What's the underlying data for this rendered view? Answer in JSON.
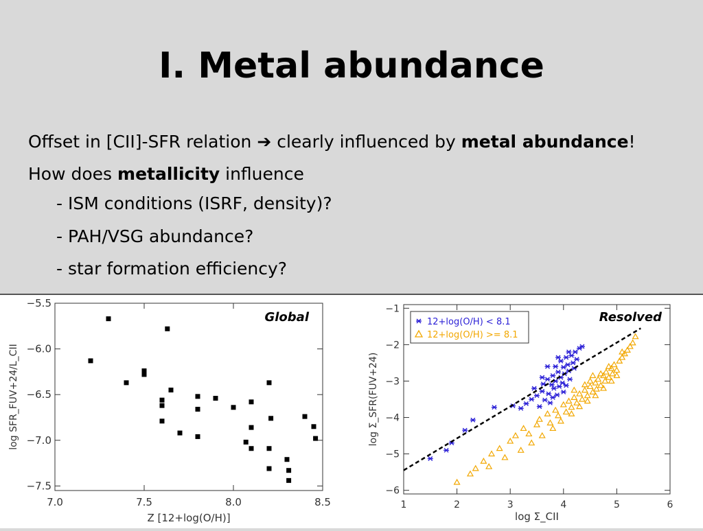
{
  "slide": {
    "title": "I. Metal abundance",
    "line1_pre": "Offset in [CII]-SFR relation ",
    "line1_arrow": "➔",
    "line1_mid": " clearly influenced by ",
    "line1_bold": "metal abundance",
    "line1_end": "!",
    "line2_pre": "How does ",
    "line2_bold": "metallicity",
    "line2_end": " influence",
    "bullets": [
      "- ISM conditions (ISRF, density)?",
      "- PAH/VSG abundance?",
      "- star formation efficiency?"
    ]
  },
  "chart_data": [
    {
      "type": "scatter",
      "title": "Global",
      "xlabel": "Z [12+log(O/H)]",
      "ylabel": "log SFR_FUV+24/L_CII",
      "xlim": [
        7.0,
        8.5
      ],
      "ylim": [
        -7.55,
        -5.5
      ],
      "xticks": [
        "7.0",
        "7.5",
        "8.0",
        "8.5"
      ],
      "yticks": [
        "−5.5",
        "−6.0",
        "−6.5",
        "−7.0",
        "−7.5"
      ],
      "points": [
        [
          7.2,
          -6.13
        ],
        [
          7.3,
          -5.67
        ],
        [
          7.4,
          -6.37
        ],
        [
          7.5,
          -6.24
        ],
        [
          7.5,
          -6.28
        ],
        [
          7.6,
          -6.56
        ],
        [
          7.6,
          -6.62
        ],
        [
          7.6,
          -6.79
        ],
        [
          7.63,
          -5.78
        ],
        [
          7.65,
          -6.45
        ],
        [
          7.7,
          -6.92
        ],
        [
          7.8,
          -6.52
        ],
        [
          7.8,
          -6.66
        ],
        [
          7.8,
          -6.96
        ],
        [
          7.9,
          -6.54
        ],
        [
          8.0,
          -6.64
        ],
        [
          8.07,
          -7.02
        ],
        [
          8.1,
          -6.58
        ],
        [
          8.1,
          -6.86
        ],
        [
          8.1,
          -7.09
        ],
        [
          8.2,
          -6.37
        ],
        [
          8.2,
          -7.09
        ],
        [
          8.2,
          -7.31
        ],
        [
          8.21,
          -6.76
        ],
        [
          8.3,
          -7.21
        ],
        [
          8.31,
          -7.33
        ],
        [
          8.31,
          -7.44
        ],
        [
          8.4,
          -6.74
        ],
        [
          8.45,
          -6.85
        ],
        [
          8.46,
          -6.98
        ]
      ]
    },
    {
      "type": "scatter",
      "title": "Resolved",
      "xlabel": "log Σ_CII",
      "ylabel": "log Σ_SFR(FUV+24)",
      "xlim": [
        1,
        6
      ],
      "ylim": [
        -6.1,
        -0.9
      ],
      "xticks": [
        "1",
        "2",
        "3",
        "4",
        "5",
        "6"
      ],
      "yticks": [
        "−1",
        "−2",
        "−3",
        "−4",
        "−5",
        "−6"
      ],
      "legend_position": "top-left",
      "series": [
        {
          "name": "12+log(O/H) < 8.1",
          "marker": "asterisk",
          "color": "#2a1fd6",
          "points": [
            [
              1.5,
              -5.13
            ],
            [
              1.8,
              -4.9
            ],
            [
              1.9,
              -4.7
            ],
            [
              2.15,
              -4.35
            ],
            [
              2.3,
              -4.07
            ],
            [
              2.7,
              -3.72
            ],
            [
              3.05,
              -3.68
            ],
            [
              3.2,
              -3.75
            ],
            [
              3.3,
              -3.62
            ],
            [
              3.4,
              -3.5
            ],
            [
              3.45,
              -3.2
            ],
            [
              3.5,
              -3.4
            ],
            [
              3.55,
              -3.7
            ],
            [
              3.6,
              -3.28
            ],
            [
              3.62,
              -3.08
            ],
            [
              3.65,
              -3.52
            ],
            [
              3.7,
              -2.95
            ],
            [
              3.72,
              -3.35
            ],
            [
              3.75,
              -3.6
            ],
            [
              3.78,
              -3.1
            ],
            [
              3.8,
              -2.85
            ],
            [
              3.8,
              -3.45
            ],
            [
              3.82,
              -3.2
            ],
            [
              3.85,
              -2.6
            ],
            [
              3.85,
              -3.0
            ],
            [
              3.88,
              -3.38
            ],
            [
              3.9,
              -2.75
            ],
            [
              3.92,
              -3.15
            ],
            [
              3.95,
              -2.45
            ],
            [
              3.95,
              -2.9
            ],
            [
              3.98,
              -3.05
            ],
            [
              4.0,
              -2.62
            ],
            [
              4.0,
              -3.3
            ],
            [
              4.02,
              -2.8
            ],
            [
              4.05,
              -2.35
            ],
            [
              4.05,
              -3.12
            ],
            [
              4.08,
              -2.55
            ],
            [
              4.1,
              -2.72
            ],
            [
              4.12,
              -2.95
            ],
            [
              4.15,
              -2.3
            ],
            [
              4.18,
              -2.5
            ],
            [
              4.2,
              -2.65
            ],
            [
              4.22,
              -2.2
            ],
            [
              4.25,
              -2.4
            ],
            [
              4.3,
              -2.1
            ],
            [
              4.35,
              -2.05
            ],
            [
              3.7,
              -2.6
            ],
            [
              3.9,
              -2.35
            ],
            [
              4.1,
              -2.2
            ],
            [
              3.6,
              -2.9
            ]
          ]
        },
        {
          "name": "12+log(O/H) >= 8.1",
          "marker": "triangle",
          "color": "#f2a700",
          "points": [
            [
              2.0,
              -5.78
            ],
            [
              2.25,
              -5.55
            ],
            [
              2.35,
              -5.4
            ],
            [
              2.5,
              -5.2
            ],
            [
              2.65,
              -5.0
            ],
            [
              2.8,
              -4.85
            ],
            [
              3.0,
              -4.65
            ],
            [
              3.1,
              -4.5
            ],
            [
              3.25,
              -4.3
            ],
            [
              3.35,
              -4.45
            ],
            [
              3.5,
              -4.2
            ],
            [
              3.55,
              -4.05
            ],
            [
              3.7,
              -3.9
            ],
            [
              3.75,
              -4.15
            ],
            [
              3.85,
              -3.8
            ],
            [
              3.9,
              -3.95
            ],
            [
              4.0,
              -3.65
            ],
            [
              4.05,
              -3.85
            ],
            [
              4.1,
              -3.55
            ],
            [
              4.15,
              -3.72
            ],
            [
              4.2,
              -3.45
            ],
            [
              4.25,
              -3.6
            ],
            [
              4.3,
              -3.35
            ],
            [
              4.35,
              -3.5
            ],
            [
              4.4,
              -3.25
            ],
            [
              4.45,
              -3.4
            ],
            [
              4.5,
              -3.15
            ],
            [
              4.55,
              -3.3
            ],
            [
              4.6,
              -3.05
            ],
            [
              4.62,
              -3.22
            ],
            [
              4.65,
              -2.95
            ],
            [
              4.7,
              -3.12
            ],
            [
              4.75,
              -2.85
            ],
            [
              4.78,
              -3.0
            ],
            [
              4.8,
              -2.75
            ],
            [
              4.85,
              -2.9
            ],
            [
              4.9,
              -2.65
            ],
            [
              4.92,
              -2.8
            ],
            [
              4.95,
              -2.55
            ],
            [
              5.0,
              -2.7
            ],
            [
              5.05,
              -2.45
            ],
            [
              5.1,
              -2.35
            ],
            [
              5.15,
              -2.25
            ],
            [
              5.2,
              -2.15
            ],
            [
              5.25,
              -2.05
            ],
            [
              5.3,
              -1.95
            ],
            [
              5.35,
              -1.78
            ],
            [
              4.45,
              -3.55
            ],
            [
              4.6,
              -3.4
            ],
            [
              4.75,
              -3.2
            ],
            [
              4.9,
              -3.0
            ],
            [
              5.0,
              -2.85
            ],
            [
              4.3,
              -3.7
            ],
            [
              4.15,
              -3.9
            ],
            [
              3.95,
              -4.1
            ],
            [
              3.8,
              -4.3
            ],
            [
              3.6,
              -4.5
            ],
            [
              3.4,
              -4.7
            ],
            [
              3.2,
              -4.9
            ],
            [
              2.9,
              -5.1
            ],
            [
              2.6,
              -5.35
            ],
            [
              4.5,
              -3.0
            ],
            [
              4.7,
              -2.8
            ],
            [
              4.85,
              -2.6
            ],
            [
              5.1,
              -2.2
            ],
            [
              4.2,
              -3.25
            ],
            [
              4.4,
              -3.1
            ],
            [
              4.55,
              -2.85
            ]
          ]
        }
      ],
      "reference_line": [
        [
          1,
          -5.45
        ],
        [
          5.45,
          -1.55
        ]
      ]
    }
  ]
}
